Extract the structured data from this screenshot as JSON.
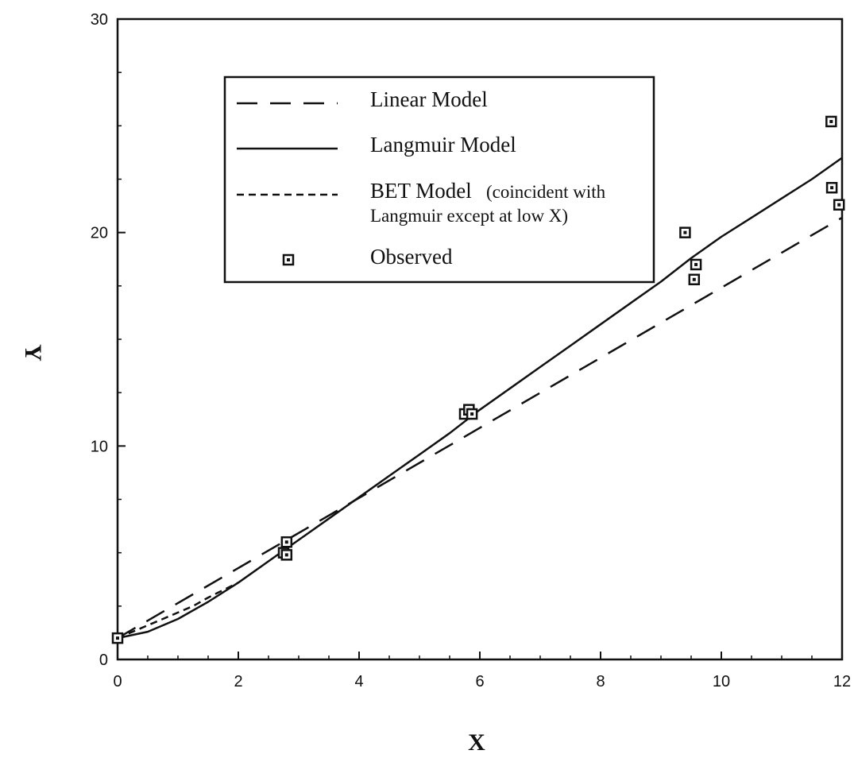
{
  "chart_data": {
    "type": "line",
    "title": "",
    "xlabel": "X",
    "ylabel": "Y",
    "xlim": [
      0,
      12
    ],
    "ylim": [
      0,
      30
    ],
    "x_ticks": [
      0,
      2,
      4,
      6,
      8,
      10,
      12
    ],
    "y_ticks": [
      0,
      10,
      20,
      30
    ],
    "grid": false,
    "legend_position": "top-center",
    "series": [
      {
        "name": "Linear Model",
        "style": "long-dash",
        "x": [
          0,
          12
        ],
        "y": [
          1.0,
          20.7
        ]
      },
      {
        "name": "Langmuir Model",
        "style": "solid",
        "x": [
          0,
          0.5,
          1,
          1.5,
          2,
          2.5,
          3,
          3.5,
          4,
          4.5,
          5,
          5.5,
          6,
          6.5,
          7,
          7.5,
          8,
          8.5,
          9,
          9.5,
          10,
          10.5,
          11,
          11.5,
          12
        ],
        "y": [
          1.0,
          1.3,
          1.9,
          2.7,
          3.6,
          4.6,
          5.6,
          6.6,
          7.6,
          8.6,
          9.6,
          10.6,
          11.7,
          12.7,
          13.7,
          14.7,
          15.7,
          16.7,
          17.7,
          18.8,
          19.8,
          20.7,
          21.6,
          22.5,
          23.5
        ]
      },
      {
        "name": "BET Model",
        "name_lines": [
          "BET Model",
          "(coincident with",
          "Langmuir except at low X)"
        ],
        "style": "short-dash",
        "x": [
          0,
          0.25,
          0.5,
          0.75,
          1.0,
          1.25,
          1.5,
          1.75,
          2.0
        ],
        "y": [
          1.0,
          1.3,
          1.6,
          1.9,
          2.2,
          2.5,
          2.9,
          3.25,
          3.6
        ]
      },
      {
        "name": "Observed",
        "style": "square-marker",
        "x": [
          0,
          2.75,
          2.8,
          2.8,
          5.75,
          5.82,
          5.87,
          9.4,
          9.55,
          9.58,
          11.82,
          11.83,
          11.95
        ],
        "y": [
          1.0,
          5.0,
          4.9,
          5.5,
          11.5,
          11.7,
          11.5,
          20.0,
          17.8,
          18.5,
          25.2,
          22.1,
          21.3
        ]
      }
    ]
  }
}
